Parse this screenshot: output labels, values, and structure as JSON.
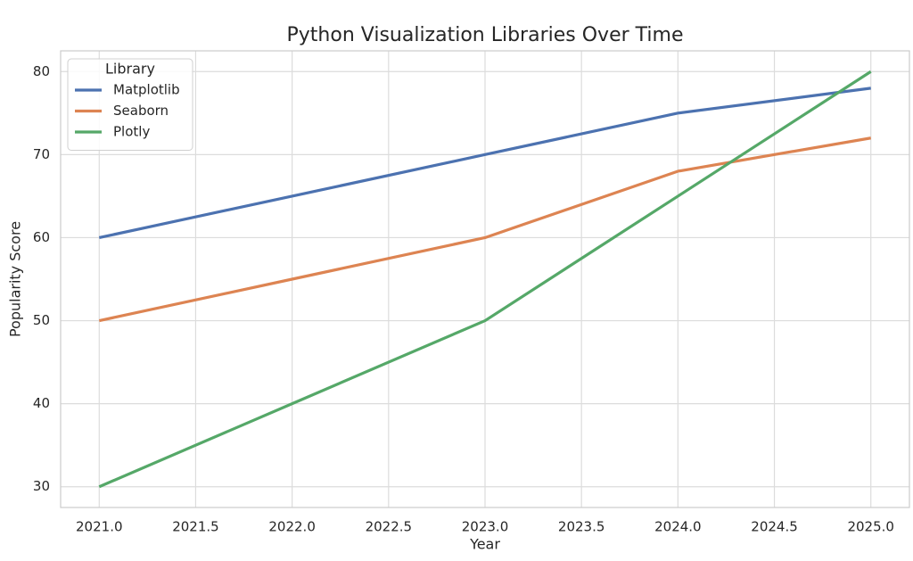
{
  "chart_data": {
    "type": "line",
    "title": "Python Visualization Libraries Over Time",
    "x_label": "Year",
    "y_label": "Popularity Score",
    "x": [
      2021,
      2022,
      2023,
      2024,
      2025
    ],
    "series": [
      {
        "name": "Matplotlib",
        "color": "#4c72b0",
        "values": [
          60,
          65,
          70,
          75,
          78
        ]
      },
      {
        "name": "Seaborn",
        "color": "#dd8452",
        "values": [
          50,
          55,
          60,
          68,
          72
        ]
      },
      {
        "name": "Plotly",
        "color": "#55a868",
        "values": [
          30,
          40,
          50,
          65,
          80
        ]
      }
    ],
    "legend_title": "Library",
    "legend_position": "upper-left",
    "xlim": [
      2020.8,
      2025.2
    ],
    "ylim": [
      27.5,
      82.5
    ],
    "xticks": [
      {
        "value": 2021,
        "label": "2021.0"
      },
      {
        "value": 2021.5,
        "label": "2021.5"
      },
      {
        "value": 2022,
        "label": "2022.0"
      },
      {
        "value": 2022.5,
        "label": "2022.5"
      },
      {
        "value": 2023,
        "label": "2023.0"
      },
      {
        "value": 2023.5,
        "label": "2023.5"
      },
      {
        "value": 2024,
        "label": "2024.0"
      },
      {
        "value": 2024.5,
        "label": "2024.5"
      },
      {
        "value": 2025,
        "label": "2025.0"
      }
    ],
    "yticks": [
      30,
      40,
      50,
      60,
      70,
      80
    ],
    "grid": true
  }
}
